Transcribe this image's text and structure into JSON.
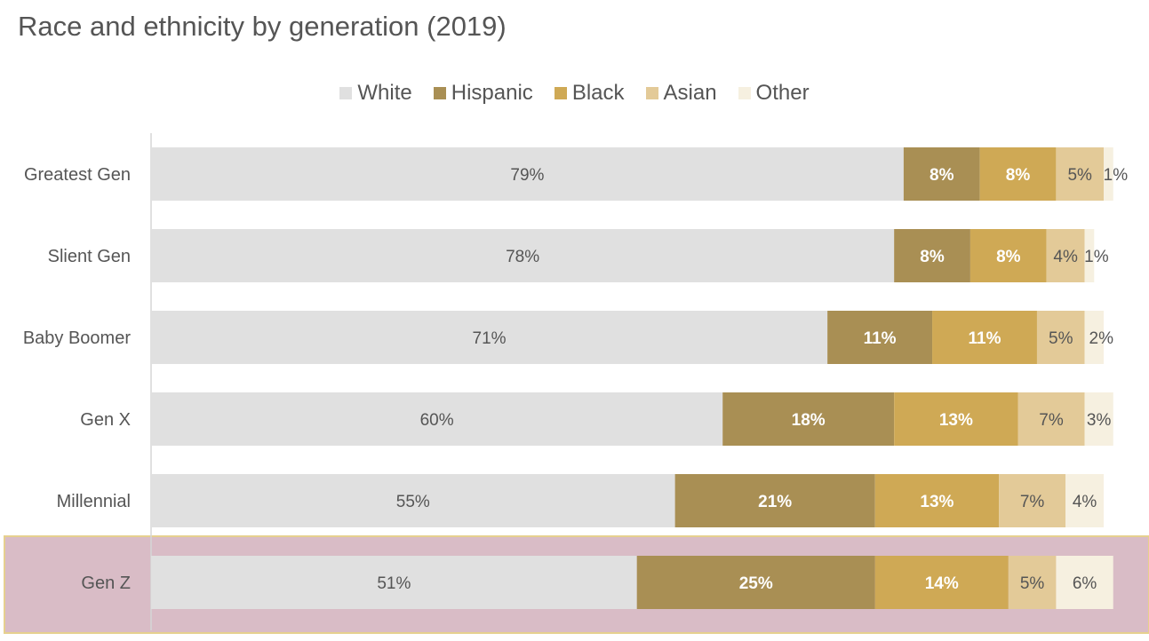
{
  "chart_data": {
    "type": "bar",
    "orientation": "horizontal",
    "stacked": true,
    "title": "Race and ethnicity by generation (2019)",
    "legend_position": "top",
    "categories": [
      "Greatest Gen",
      "Slient Gen",
      "Baby Boomer",
      "Gen X",
      "Millennial",
      "Gen Z"
    ],
    "series": [
      {
        "name": "White",
        "color": "#e0e0e0",
        "label_color": "#555555",
        "values": [
          79,
          78,
          71,
          60,
          55,
          51
        ]
      },
      {
        "name": "Hispanic",
        "color": "#a98f54",
        "label_color": "#ffffff",
        "values": [
          8,
          8,
          11,
          18,
          21,
          25
        ]
      },
      {
        "name": "Black",
        "color": "#cfa955",
        "label_color": "#ffffff",
        "values": [
          8,
          8,
          11,
          13,
          13,
          14
        ]
      },
      {
        "name": "Asian",
        "color": "#e3ca98",
        "label_color": "#555555",
        "values": [
          5,
          4,
          5,
          7,
          7,
          5
        ]
      },
      {
        "name": "Other",
        "color": "#f6f0e0",
        "label_color": "#555555",
        "values": [
          1,
          1,
          2,
          3,
          4,
          6
        ]
      }
    ],
    "data_labels": [
      [
        "79%",
        "8%",
        "8%",
        "5%",
        "1%"
      ],
      [
        "78%",
        "8%",
        "8%",
        "4%",
        "1%"
      ],
      [
        "71%",
        "11%",
        "11%",
        "5%",
        "2%"
      ],
      [
        "60%",
        "18%",
        "13%",
        "7%",
        "3%"
      ],
      [
        "55%",
        "21%",
        "13%",
        "7%",
        "4%"
      ],
      [
        "51%",
        "25%",
        "14%",
        "5%",
        "6%"
      ]
    ],
    "highlighted_category": "Gen Z",
    "highlight_color": "#d9bcc6",
    "highlight_border_color": "#e6d08e"
  }
}
